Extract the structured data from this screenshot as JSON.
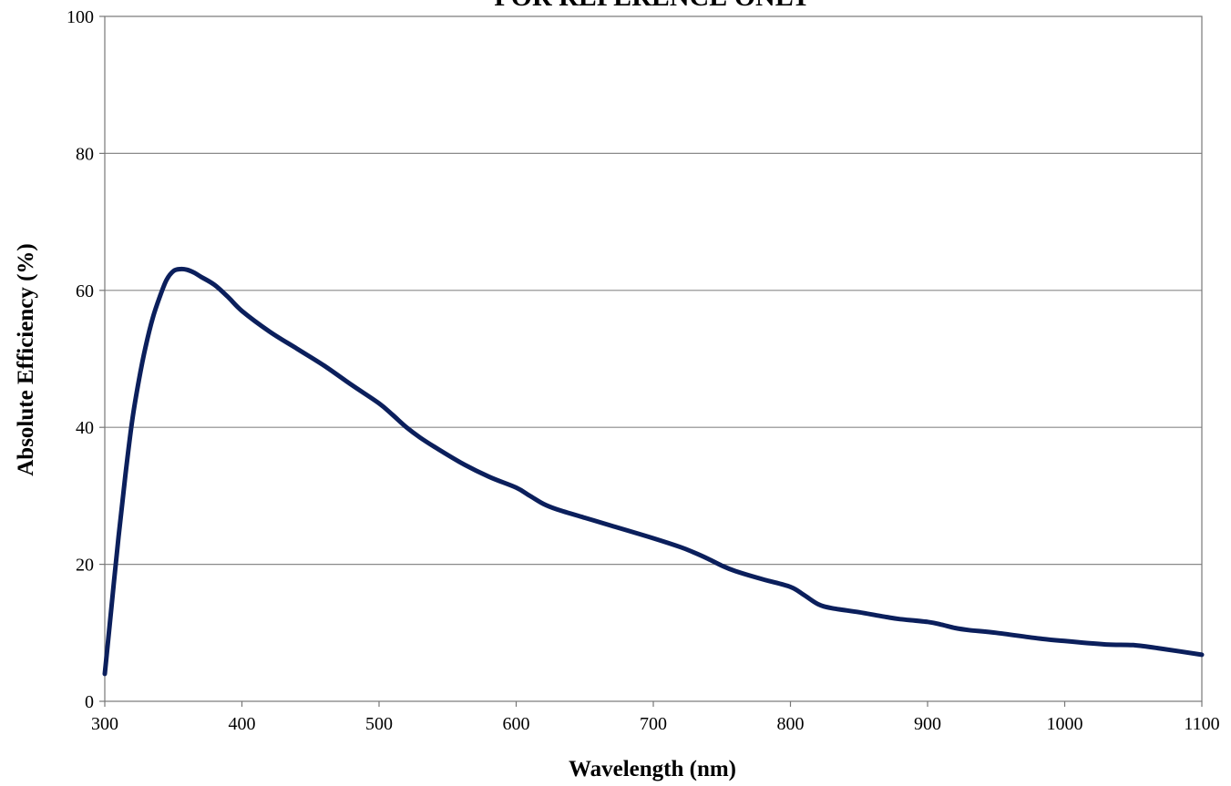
{
  "chart_data": {
    "type": "line",
    "title": "FOR REFERENCE ONLY",
    "xlabel": "Wavelength (nm)",
    "ylabel": "Absolute Efficiency (%)",
    "xlim": [
      300,
      1100
    ],
    "ylim": [
      0,
      100
    ],
    "x_ticks": [
      300,
      400,
      500,
      600,
      700,
      800,
      900,
      1000,
      1100
    ],
    "y_ticks": [
      0,
      20,
      40,
      60,
      80,
      100
    ],
    "grid": {
      "horizontal": true,
      "vertical": false
    },
    "legend": "none",
    "series": [
      {
        "color": "#0b1f5c",
        "x": [
          300,
          305,
          310,
          315,
          320,
          325,
          330,
          335,
          340,
          345,
          350,
          355,
          360,
          365,
          370,
          380,
          390,
          400,
          420,
          440,
          460,
          480,
          500,
          510,
          520,
          530,
          540,
          560,
          580,
          600,
          610,
          620,
          630,
          650,
          670,
          700,
          720,
          730,
          740,
          750,
          760,
          780,
          800,
          810,
          820,
          830,
          850,
          870,
          880,
          900,
          910,
          920,
          930,
          950,
          980,
          1000,
          1030,
          1050,
          1070,
          1100
        ],
        "values": [
          4,
          14,
          24,
          33,
          41,
          47,
          52,
          56,
          59,
          61.5,
          62.8,
          63.1,
          63,
          62.6,
          62,
          60.8,
          59,
          57,
          54,
          51.5,
          49,
          46.2,
          43.5,
          41.8,
          40,
          38.5,
          37.2,
          34.8,
          32.8,
          31.2,
          30,
          28.8,
          28,
          26.8,
          25.6,
          23.8,
          22.5,
          21.7,
          20.8,
          19.8,
          19,
          17.8,
          16.7,
          15.5,
          14.2,
          13.6,
          13,
          12.3,
          12,
          11.6,
          11.2,
          10.7,
          10.4,
          10,
          9.2,
          8.8,
          8.3,
          8.2,
          7.7,
          6.8
        ]
      }
    ]
  }
}
